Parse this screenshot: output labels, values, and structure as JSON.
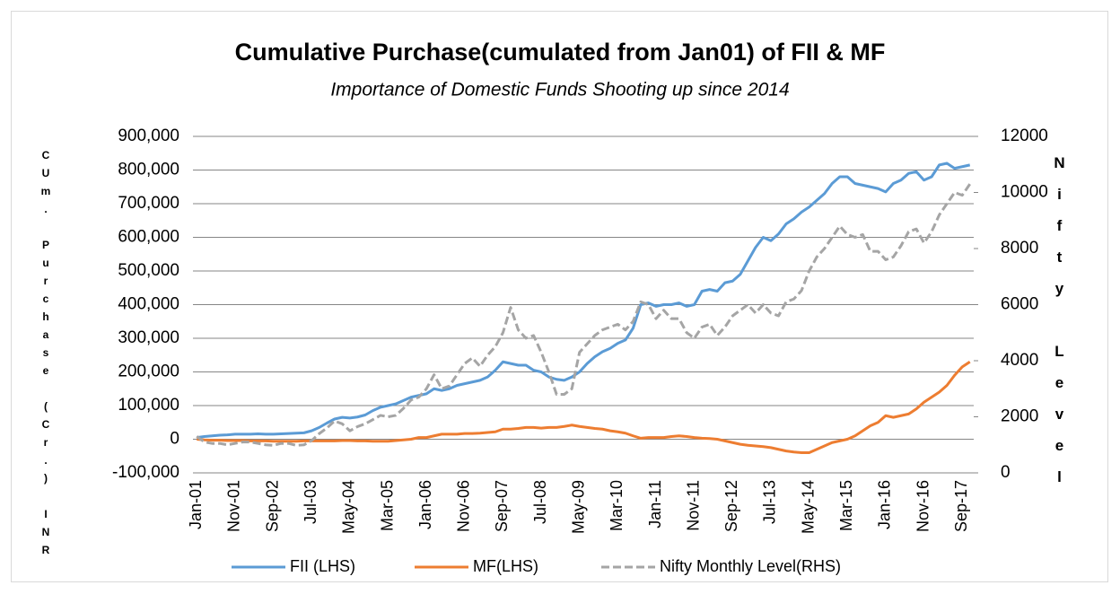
{
  "chart_data": {
    "type": "line",
    "title": "Cumulative Purchase(cumulated from Jan01) of FII & MF",
    "subtitle": "Importance of Domestic Funds Shooting up since 2014",
    "y_label": "CUm. Purchase (Cr.) INR",
    "y2_label": "Nifty Level",
    "categories": [
      "Jan-01",
      null,
      null,
      null,
      null,
      "Nov-01",
      null,
      null,
      null,
      null,
      "Sep-02",
      null,
      null,
      null,
      null,
      "Jul-03",
      null,
      null,
      null,
      null,
      "May-04",
      null,
      null,
      null,
      null,
      "Mar-05",
      null,
      null,
      null,
      null,
      "Jan-06",
      null,
      null,
      null,
      null,
      "Nov-06",
      null,
      null,
      null,
      null,
      "Sep-07",
      null,
      null,
      null,
      null,
      "Jul-08",
      null,
      null,
      null,
      null,
      "May-09",
      null,
      null,
      null,
      null,
      "Mar-10",
      null,
      null,
      null,
      null,
      "Jan-11",
      null,
      null,
      null,
      null,
      "Nov-11",
      null,
      null,
      null,
      null,
      "Sep-12",
      null,
      null,
      null,
      null,
      "Jul-13",
      null,
      null,
      null,
      null,
      "May-14",
      null,
      null,
      null,
      null,
      "Mar-15",
      null,
      null,
      null,
      null,
      "Jan-16",
      null,
      null,
      null,
      null,
      "Nov-16",
      null,
      null,
      null,
      null,
      "Sep-17",
      null
    ],
    "series": [
      {
        "name": "FII (LHS)",
        "color": "#5b9bd5",
        "values": [
          5000,
          8000,
          10000,
          12000,
          13000,
          15000,
          15000,
          15000,
          16000,
          15000,
          15000,
          16000,
          17000,
          18000,
          19000,
          25000,
          35000,
          48000,
          60000,
          65000,
          63000,
          66000,
          72000,
          85000,
          95000,
          100000,
          105000,
          115000,
          125000,
          130000,
          135000,
          150000,
          145000,
          150000,
          160000,
          165000,
          170000,
          175000,
          185000,
          205000,
          230000,
          225000,
          220000,
          220000,
          205000,
          200000,
          185000,
          178000,
          175000,
          185000,
          200000,
          225000,
          245000,
          260000,
          270000,
          285000,
          295000,
          330000,
          400000,
          405000,
          395000,
          400000,
          400000,
          405000,
          395000,
          400000,
          440000,
          445000,
          440000,
          465000,
          470000,
          490000,
          530000,
          570000,
          600000,
          590000,
          610000,
          640000,
          655000,
          675000,
          690000,
          710000,
          730000,
          760000,
          780000,
          780000,
          760000,
          755000,
          750000,
          745000,
          735000,
          760000,
          770000,
          790000,
          795000,
          770000,
          780000,
          815000,
          820000,
          805000,
          810000,
          815000
        ]
      },
      {
        "name": "MF(LHS)",
        "color": "#ed7d31",
        "values": [
          0,
          -2000,
          -3000,
          -3000,
          -4000,
          -4000,
          -4000,
          -5000,
          -5000,
          -5000,
          -6000,
          -6000,
          -6000,
          -6000,
          -5000,
          -5000,
          -5000,
          -5000,
          -5000,
          -4000,
          -4000,
          -5000,
          -5000,
          -6000,
          -6000,
          -6000,
          -4000,
          -2000,
          0,
          5000,
          5000,
          10000,
          15000,
          15000,
          15000,
          17000,
          17000,
          18000,
          20000,
          22000,
          30000,
          30000,
          32000,
          35000,
          35000,
          33000,
          35000,
          35000,
          38000,
          42000,
          38000,
          35000,
          32000,
          30000,
          25000,
          22000,
          18000,
          10000,
          3000,
          5000,
          5000,
          5000,
          8000,
          10000,
          8000,
          5000,
          3000,
          2000,
          0,
          -5000,
          -10000,
          -15000,
          -18000,
          -20000,
          -22000,
          -25000,
          -30000,
          -35000,
          -38000,
          -40000,
          -40000,
          -30000,
          -20000,
          -10000,
          -5000,
          0,
          10000,
          25000,
          40000,
          50000,
          70000,
          65000,
          70000,
          75000,
          90000,
          110000,
          125000,
          140000,
          160000,
          190000,
          215000,
          230000
        ]
      },
      {
        "name": "Nifty Monthly Level(RHS)",
        "color": "#a5a5a5",
        "dashed": true,
        "axis": "y2",
        "values": [
          1300,
          1100,
          1050,
          1050,
          1000,
          1050,
          1100,
          1100,
          1050,
          1000,
          980,
          1050,
          1050,
          980,
          1000,
          1150,
          1400,
          1600,
          1850,
          1750,
          1500,
          1650,
          1750,
          1900,
          2050,
          2000,
          2050,
          2300,
          2600,
          2700,
          3000,
          3500,
          3000,
          3100,
          3500,
          3900,
          4100,
          3800,
          4200,
          4500,
          5000,
          5900,
          5100,
          4800,
          4900,
          4300,
          3600,
          2800,
          2800,
          3000,
          4300,
          4600,
          4900,
          5100,
          5200,
          5300,
          5100,
          5400,
          6100,
          6000,
          5500,
          5800,
          5500,
          5500,
          5000,
          4800,
          5200,
          5300,
          4900,
          5200,
          5600,
          5800,
          6000,
          5700,
          6000,
          5700,
          5600,
          6100,
          6200,
          6500,
          7200,
          7700,
          8000,
          8400,
          8800,
          8500,
          8400,
          8500,
          7900,
          7900,
          7600,
          7700,
          8100,
          8600,
          8700,
          8200,
          8600,
          9200,
          9600,
          10000,
          9900,
          10300
        ]
      }
    ],
    "ylim": [
      -100000,
      900000
    ],
    "yticks": [
      {
        "value": -100000,
        "label": "-100,000"
      },
      0,
      {
        "value": 100000,
        "label": "100,000"
      },
      {
        "value": 200000,
        "label": "200,000"
      },
      {
        "value": 300000,
        "label": "300,000"
      },
      {
        "value": 400000,
        "label": "400,000"
      },
      {
        "value": 500000,
        "label": "500,000"
      },
      {
        "value": 600000,
        "label": "600,000"
      },
      {
        "value": 700000,
        "label": "700,000"
      },
      {
        "value": 800000,
        "label": "800,000"
      },
      {
        "value": 900000,
        "label": "900,000"
      }
    ],
    "y2lim": [
      0,
      12000
    ],
    "y2ticks": [
      0,
      2000,
      4000,
      6000,
      8000,
      10000,
      12000
    ],
    "grid": true,
    "legend": "bottom"
  }
}
